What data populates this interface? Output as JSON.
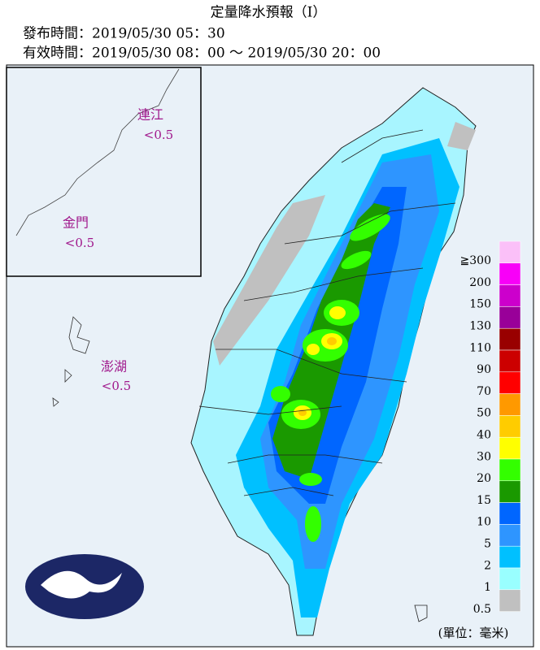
{
  "header": {
    "title": "定量降水預報（Ⅰ）",
    "issued": "發布時間：2019/05/30 05：30",
    "valid": "有效時間：2019/05/30 08：00 ～ 2019/05/30 20：00"
  },
  "islands": [
    {
      "name": "連江",
      "value": "<0.5"
    },
    {
      "name": "金門",
      "value": "<0.5"
    },
    {
      "name": "澎湖",
      "value": "<0.5"
    }
  ],
  "legend": {
    "items": [
      {
        "label": "≧300",
        "color": "#fbc0f8"
      },
      {
        "label": "200",
        "color": "#f800f8"
      },
      {
        "label": "150",
        "color": "#cc00cc"
      },
      {
        "label": "130",
        "color": "#990099"
      },
      {
        "label": "110",
        "color": "#990000"
      },
      {
        "label": "90",
        "color": "#cc0000"
      },
      {
        "label": "70",
        "color": "#ff0000"
      },
      {
        "label": "50",
        "color": "#ff9900"
      },
      {
        "label": "40",
        "color": "#ffcc00"
      },
      {
        "label": "30",
        "color": "#ffff00"
      },
      {
        "label": "20",
        "color": "#33ff00"
      },
      {
        "label": "15",
        "color": "#1a9900"
      },
      {
        "label": "10",
        "color": "#0066ff"
      },
      {
        "label": "5",
        "color": "#2e95ff"
      },
      {
        "label": "2",
        "color": "#00c0ff"
      },
      {
        "label": "1",
        "color": "#99ffff"
      },
      {
        "label": "0.5",
        "color": "#c0c0c0"
      }
    ],
    "unit": "(單位：毫米)"
  }
}
